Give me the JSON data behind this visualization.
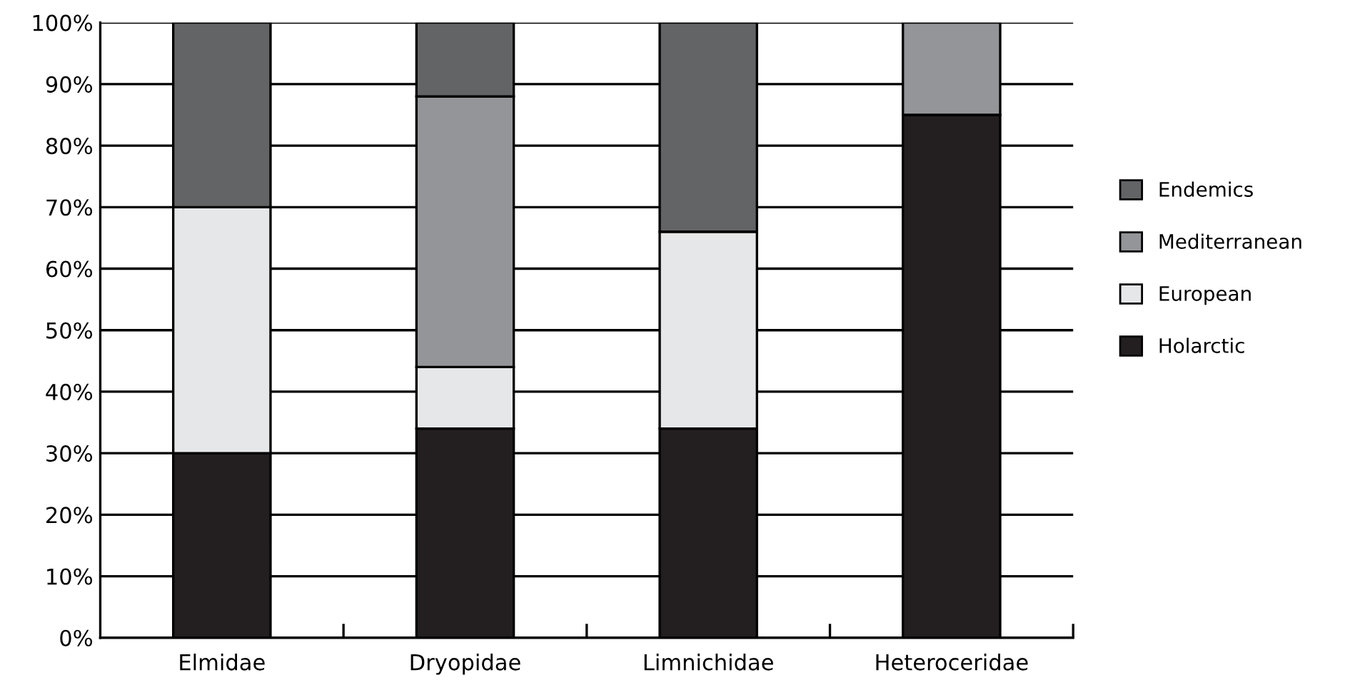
{
  "chart_data": {
    "type": "bar",
    "stacked": true,
    "categories": [
      "Elmidae",
      "Dryopidae",
      "Limnichidae",
      "Heteroceridae"
    ],
    "series": [
      {
        "name": "Holarctic",
        "color": "#231f20",
        "values": [
          30,
          34,
          34,
          85
        ]
      },
      {
        "name": "European",
        "color": "#e6e7e8",
        "values": [
          40,
          10,
          32,
          null
        ]
      },
      {
        "name": "Mediterranean",
        "color": "#939598",
        "values": [
          null,
          44,
          null,
          15
        ]
      },
      {
        "name": "Endemics",
        "color": "#636466",
        "values": [
          30,
          12,
          34,
          null
        ]
      }
    ],
    "ylim": [
      0,
      100
    ],
    "yticks": [
      {
        "value": 0,
        "label": "0%"
      },
      {
        "value": 10,
        "label": "10%"
      },
      {
        "value": 20,
        "label": "20%"
      },
      {
        "value": 30,
        "label": "30%"
      },
      {
        "value": 40,
        "label": "40%"
      },
      {
        "value": 50,
        "label": "50%"
      },
      {
        "value": 60,
        "label": "60%"
      },
      {
        "value": 70,
        "label": "70%"
      },
      {
        "value": 80,
        "label": "80%"
      },
      {
        "value": 90,
        "label": "90%"
      },
      {
        "value": 100,
        "label": "100%"
      }
    ],
    "grid": "y",
    "legend": "right"
  }
}
